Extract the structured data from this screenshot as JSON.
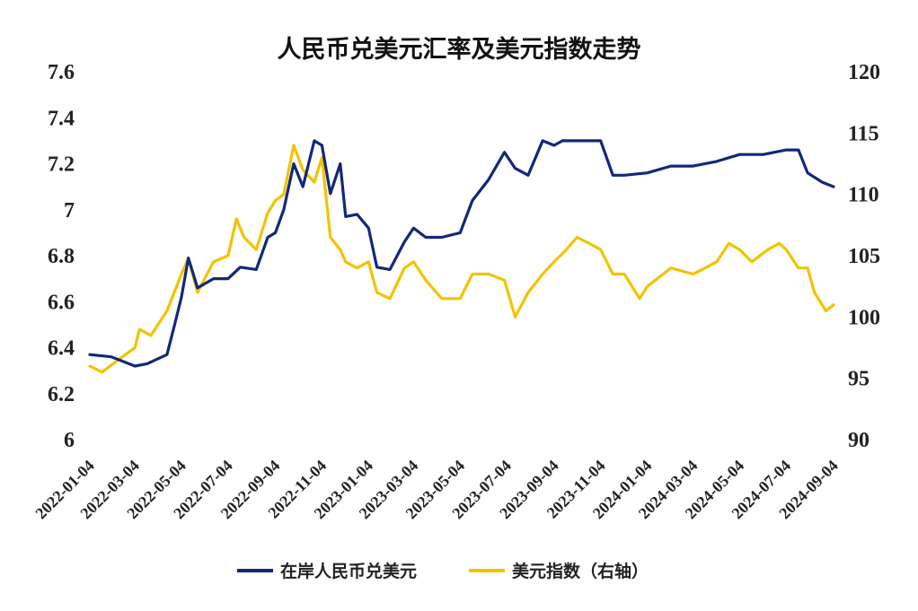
{
  "chart_data": {
    "type": "line",
    "title": "人民币兑美元汇率及美元指数走势",
    "grid": false,
    "legend_position": "bottom",
    "x_tick_labels": [
      "2022-01-04",
      "2022-03-04",
      "2022-05-04",
      "2022-07-04",
      "2022-09-04",
      "2022-11-04",
      "2023-01-04",
      "2023-03-04",
      "2023-05-04",
      "2023-07-04",
      "2023-09-04",
      "2023-11-04",
      "2024-01-04",
      "2024-03-04",
      "2024-05-04",
      "2024-07-04",
      "2024-09-04"
    ],
    "y_left": {
      "ylim": [
        6,
        7.6
      ],
      "tick_labels": [
        "6",
        "6.2",
        "6.4",
        "6.6",
        "6.8",
        "7",
        "7.2",
        "7.4",
        "7.6"
      ]
    },
    "y_right": {
      "ylim": [
        90,
        120
      ],
      "tick_labels": [
        "90",
        "95",
        "100",
        "105",
        "110",
        "115",
        "120"
      ]
    },
    "series": [
      {
        "name": "在岸人民币兑美元",
        "axis": "left",
        "color": "#13277a",
        "points": [
          [
            "2022-01-04",
            6.37
          ],
          [
            "2022-02-01",
            6.36
          ],
          [
            "2022-03-04",
            6.32
          ],
          [
            "2022-03-20",
            6.33
          ],
          [
            "2022-04-15",
            6.37
          ],
          [
            "2022-04-25",
            6.5
          ],
          [
            "2022-05-04",
            6.62
          ],
          [
            "2022-05-13",
            6.79
          ],
          [
            "2022-05-25",
            6.66
          ],
          [
            "2022-06-15",
            6.7
          ],
          [
            "2022-07-04",
            6.7
          ],
          [
            "2022-07-20",
            6.75
          ],
          [
            "2022-08-10",
            6.74
          ],
          [
            "2022-08-25",
            6.88
          ],
          [
            "2022-09-04",
            6.9
          ],
          [
            "2022-09-15",
            7.0
          ],
          [
            "2022-09-28",
            7.2
          ],
          [
            "2022-10-10",
            7.1
          ],
          [
            "2022-10-25",
            7.3
          ],
          [
            "2022-11-04",
            7.28
          ],
          [
            "2022-11-15",
            7.07
          ],
          [
            "2022-11-28",
            7.2
          ],
          [
            "2022-12-05",
            6.97
          ],
          [
            "2022-12-20",
            6.98
          ],
          [
            "2023-01-04",
            6.92
          ],
          [
            "2023-01-15",
            6.75
          ],
          [
            "2023-02-01",
            6.74
          ],
          [
            "2023-02-20",
            6.86
          ],
          [
            "2023-03-04",
            6.92
          ],
          [
            "2023-03-20",
            6.88
          ],
          [
            "2023-04-10",
            6.88
          ],
          [
            "2023-05-04",
            6.9
          ],
          [
            "2023-05-20",
            7.04
          ],
          [
            "2023-06-10",
            7.13
          ],
          [
            "2023-07-01",
            7.25
          ],
          [
            "2023-07-15",
            7.18
          ],
          [
            "2023-08-01",
            7.15
          ],
          [
            "2023-08-20",
            7.3
          ],
          [
            "2023-09-04",
            7.28
          ],
          [
            "2023-09-15",
            7.3
          ],
          [
            "2023-10-15",
            7.3
          ],
          [
            "2023-11-04",
            7.3
          ],
          [
            "2023-11-20",
            7.15
          ],
          [
            "2023-12-05",
            7.15
          ],
          [
            "2024-01-04",
            7.16
          ],
          [
            "2024-02-04",
            7.19
          ],
          [
            "2024-03-04",
            7.19
          ],
          [
            "2024-04-04",
            7.21
          ],
          [
            "2024-05-04",
            7.24
          ],
          [
            "2024-06-04",
            7.24
          ],
          [
            "2024-07-04",
            7.26
          ],
          [
            "2024-07-20",
            7.26
          ],
          [
            "2024-08-01",
            7.16
          ],
          [
            "2024-08-20",
            7.12
          ],
          [
            "2024-09-04",
            7.1
          ]
        ]
      },
      {
        "name": "美元指数（右轴）",
        "axis": "right",
        "color": "#f2c300",
        "points": [
          [
            "2022-01-04",
            96.0
          ],
          [
            "2022-01-20",
            95.5
          ],
          [
            "2022-02-10",
            96.5
          ],
          [
            "2022-03-04",
            97.5
          ],
          [
            "2022-03-10",
            99.0
          ],
          [
            "2022-03-25",
            98.5
          ],
          [
            "2022-04-15",
            100.5
          ],
          [
            "2022-05-04",
            103.5
          ],
          [
            "2022-05-13",
            104.8
          ],
          [
            "2022-05-25",
            102.0
          ],
          [
            "2022-06-15",
            104.5
          ],
          [
            "2022-07-04",
            105.0
          ],
          [
            "2022-07-15",
            108.0
          ],
          [
            "2022-07-25",
            106.5
          ],
          [
            "2022-08-10",
            105.5
          ],
          [
            "2022-08-25",
            108.5
          ],
          [
            "2022-09-04",
            109.5
          ],
          [
            "2022-09-15",
            110.0
          ],
          [
            "2022-09-28",
            114.0
          ],
          [
            "2022-10-10",
            112.0
          ],
          [
            "2022-10-25",
            111.0
          ],
          [
            "2022-11-04",
            113.0
          ],
          [
            "2022-11-15",
            106.5
          ],
          [
            "2022-11-28",
            105.5
          ],
          [
            "2022-12-05",
            104.5
          ],
          [
            "2022-12-20",
            104.0
          ],
          [
            "2023-01-04",
            104.5
          ],
          [
            "2023-01-15",
            102.0
          ],
          [
            "2023-02-01",
            101.5
          ],
          [
            "2023-02-20",
            104.0
          ],
          [
            "2023-03-04",
            104.5
          ],
          [
            "2023-03-20",
            103.0
          ],
          [
            "2023-04-10",
            101.5
          ],
          [
            "2023-05-04",
            101.5
          ],
          [
            "2023-05-20",
            103.5
          ],
          [
            "2023-06-10",
            103.5
          ],
          [
            "2023-07-01",
            103.0
          ],
          [
            "2023-07-15",
            100.0
          ],
          [
            "2023-08-01",
            102.0
          ],
          [
            "2023-08-20",
            103.5
          ],
          [
            "2023-09-04",
            104.5
          ],
          [
            "2023-09-20",
            105.5
          ],
          [
            "2023-10-04",
            106.5
          ],
          [
            "2023-10-20",
            106.0
          ],
          [
            "2023-11-04",
            105.5
          ],
          [
            "2023-11-20",
            103.5
          ],
          [
            "2023-12-05",
            103.5
          ],
          [
            "2023-12-25",
            101.5
          ],
          [
            "2024-01-04",
            102.5
          ],
          [
            "2024-02-04",
            104.0
          ],
          [
            "2024-03-04",
            103.5
          ],
          [
            "2024-03-20",
            104.0
          ],
          [
            "2024-04-04",
            104.5
          ],
          [
            "2024-04-20",
            106.0
          ],
          [
            "2024-05-04",
            105.5
          ],
          [
            "2024-05-20",
            104.5
          ],
          [
            "2024-06-10",
            105.5
          ],
          [
            "2024-06-25",
            106.0
          ],
          [
            "2024-07-04",
            105.5
          ],
          [
            "2024-07-20",
            104.0
          ],
          [
            "2024-08-01",
            104.0
          ],
          [
            "2024-08-10",
            102.0
          ],
          [
            "2024-08-25",
            100.5
          ],
          [
            "2024-09-04",
            101.0
          ]
        ]
      }
    ]
  }
}
